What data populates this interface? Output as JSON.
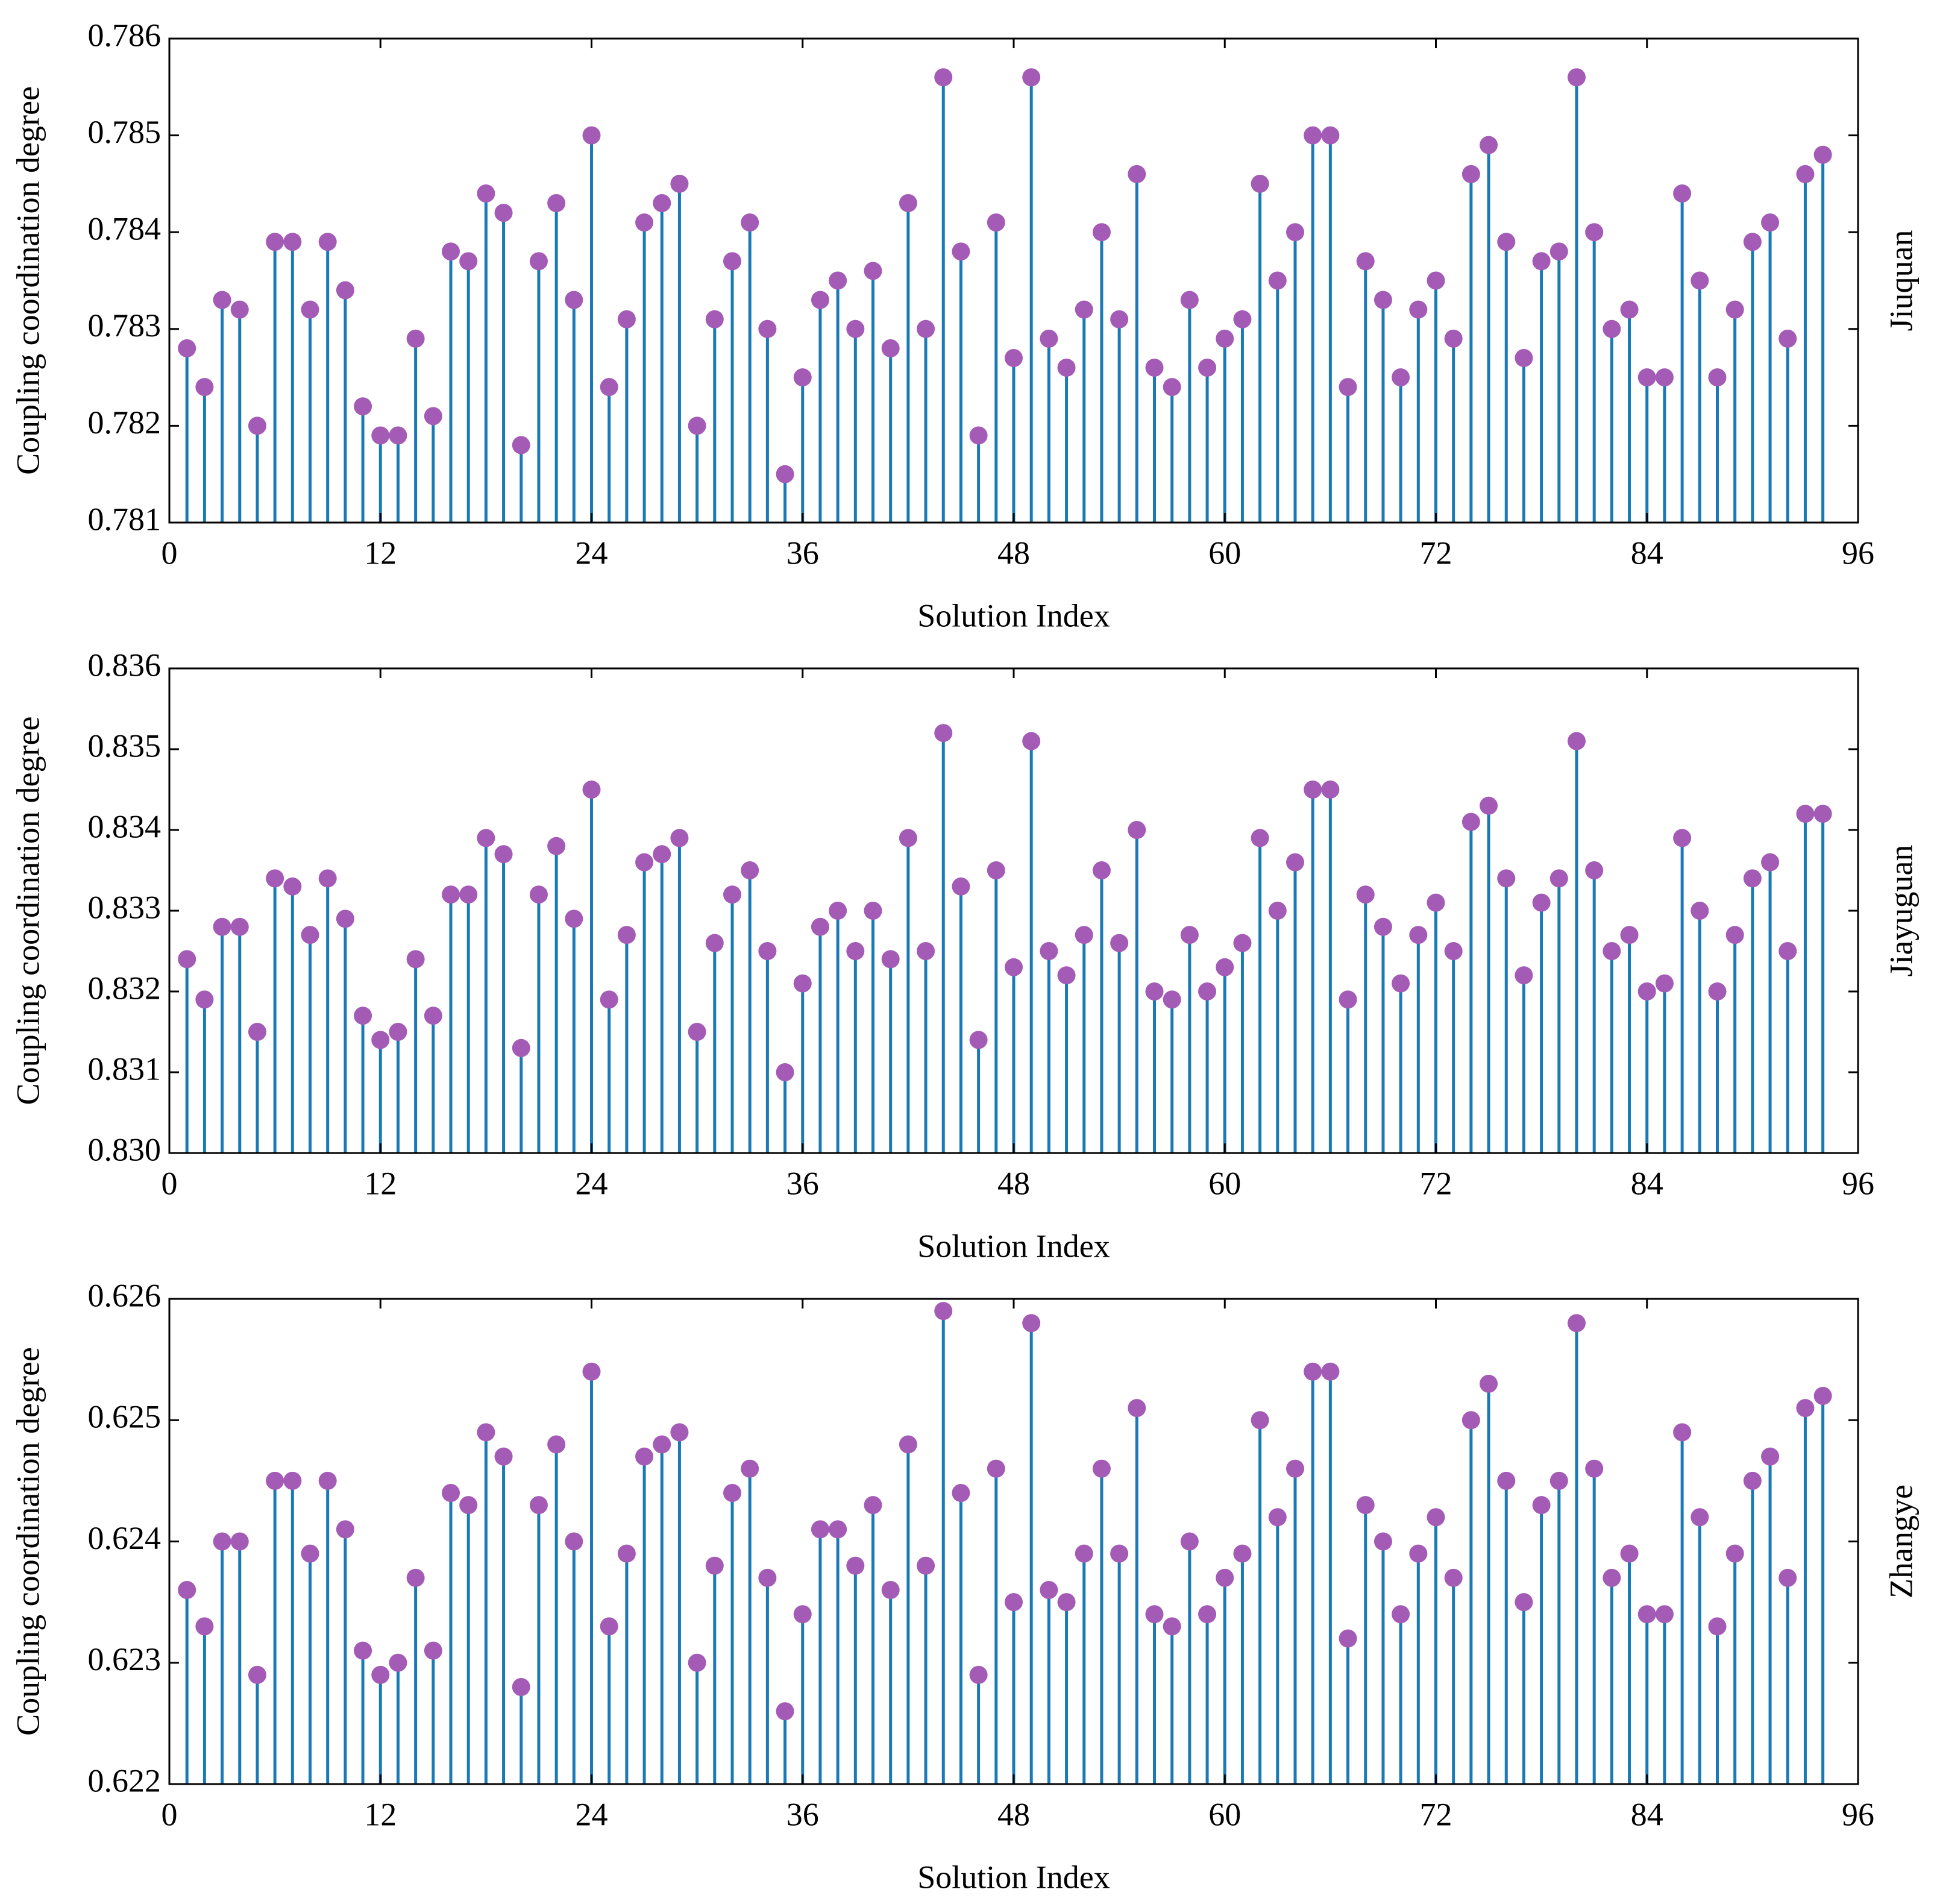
{
  "chart_data": [
    {
      "type": "stem",
      "panel_label": "Jiuquan",
      "xlabel": "Solution Index",
      "ylabel": "Coupling coordination degree",
      "stem_color": "#1a7ab8",
      "marker_color": "#a35bb6",
      "xlim": [
        0,
        96
      ],
      "xticks": [
        0,
        12,
        24,
        36,
        48,
        60,
        72,
        84,
        96
      ],
      "ylim": [
        0.781,
        0.786
      ],
      "yticks": [
        0.781,
        0.782,
        0.783,
        0.784,
        0.785,
        0.786
      ],
      "x": [
        1,
        2,
        3,
        4,
        5,
        6,
        7,
        8,
        9,
        10,
        11,
        12,
        13,
        14,
        15,
        16,
        17,
        18,
        19,
        20,
        21,
        22,
        23,
        24,
        25,
        26,
        27,
        28,
        29,
        30,
        31,
        32,
        33,
        34,
        35,
        36,
        37,
        38,
        39,
        40,
        41,
        42,
        43,
        44,
        45,
        46,
        47,
        48,
        49,
        50,
        51,
        52,
        53,
        54,
        55,
        56,
        57,
        58,
        59,
        60,
        61,
        62,
        63,
        64,
        65,
        66,
        67,
        68,
        69,
        70,
        71,
        72,
        73,
        74,
        75,
        76,
        77,
        78,
        79,
        80,
        81,
        82,
        83,
        84,
        85,
        86,
        87,
        88,
        89,
        90,
        91,
        92,
        93,
        94
      ],
      "values": [
        0.7828,
        0.7824,
        0.7833,
        0.7832,
        0.782,
        0.7839,
        0.7839,
        0.7832,
        0.7839,
        0.7834,
        0.7822,
        0.7819,
        0.7819,
        0.7829,
        0.7821,
        0.7838,
        0.7837,
        0.7844,
        0.7842,
        0.7818,
        0.7837,
        0.7843,
        0.7833,
        0.785,
        0.7824,
        0.7831,
        0.7841,
        0.7843,
        0.7845,
        0.782,
        0.7831,
        0.7837,
        0.7841,
        0.783,
        0.7815,
        0.7825,
        0.7833,
        0.7835,
        0.783,
        0.7836,
        0.7828,
        0.7843,
        0.783,
        0.7856,
        0.7838,
        0.7819,
        0.7841,
        0.7827,
        0.7856,
        0.7829,
        0.7826,
        0.7832,
        0.784,
        0.7831,
        0.7846,
        0.7826,
        0.7824,
        0.7833,
        0.7826,
        0.7829,
        0.7831,
        0.7845,
        0.7835,
        0.784,
        0.785,
        0.785,
        0.7824,
        0.7837,
        0.7833,
        0.7825,
        0.7832,
        0.7835,
        0.7829,
        0.7846,
        0.7849,
        0.7839,
        0.7827,
        0.7837,
        0.7838,
        0.7856,
        0.784,
        0.783,
        0.7832,
        0.7825,
        0.7825,
        0.7844,
        0.7835,
        0.7825,
        0.7832,
        0.7839,
        0.7841,
        0.7829,
        0.7846,
        0.7848
      ]
    },
    {
      "type": "stem",
      "panel_label": "Jiayuguan",
      "xlabel": "Solution Index",
      "ylabel": "Coupling coordination degree",
      "stem_color": "#1a7ab8",
      "marker_color": "#a35bb6",
      "xlim": [
        0,
        96
      ],
      "xticks": [
        0,
        12,
        24,
        36,
        48,
        60,
        72,
        84,
        96
      ],
      "ylim": [
        0.83,
        0.836
      ],
      "yticks": [
        {
          "value": 0.83,
          "label": "0.830"
        },
        0.831,
        0.832,
        0.833,
        0.834,
        0.835,
        0.836
      ],
      "x": [
        1,
        2,
        3,
        4,
        5,
        6,
        7,
        8,
        9,
        10,
        11,
        12,
        13,
        14,
        15,
        16,
        17,
        18,
        19,
        20,
        21,
        22,
        23,
        24,
        25,
        26,
        27,
        28,
        29,
        30,
        31,
        32,
        33,
        34,
        35,
        36,
        37,
        38,
        39,
        40,
        41,
        42,
        43,
        44,
        45,
        46,
        47,
        48,
        49,
        50,
        51,
        52,
        53,
        54,
        55,
        56,
        57,
        58,
        59,
        60,
        61,
        62,
        63,
        64,
        65,
        66,
        67,
        68,
        69,
        70,
        71,
        72,
        73,
        74,
        75,
        76,
        77,
        78,
        79,
        80,
        81,
        82,
        83,
        84,
        85,
        86,
        87,
        88,
        89,
        90,
        91,
        92,
        93,
        94
      ],
      "values": [
        0.8324,
        0.8319,
        0.8328,
        0.8328,
        0.8315,
        0.8334,
        0.8333,
        0.8327,
        0.8334,
        0.8329,
        0.8317,
        0.8314,
        0.8315,
        0.8324,
        0.8317,
        0.8332,
        0.8332,
        0.8339,
        0.8337,
        0.8313,
        0.8332,
        0.8338,
        0.8329,
        0.8345,
        0.8319,
        0.8327,
        0.8336,
        0.8337,
        0.8339,
        0.8315,
        0.8326,
        0.8332,
        0.8335,
        0.8325,
        0.831,
        0.8321,
        0.8328,
        0.833,
        0.8325,
        0.833,
        0.8324,
        0.8339,
        0.8325,
        0.8352,
        0.8333,
        0.8314,
        0.8335,
        0.8323,
        0.8351,
        0.8325,
        0.8322,
        0.8327,
        0.8335,
        0.8326,
        0.834,
        0.832,
        0.8319,
        0.8327,
        0.832,
        0.8323,
        0.8326,
        0.8339,
        0.833,
        0.8336,
        0.8345,
        0.8345,
        0.8319,
        0.8332,
        0.8328,
        0.8321,
        0.8327,
        0.8331,
        0.8325,
        0.8341,
        0.8343,
        0.8334,
        0.8322,
        0.8331,
        0.8334,
        0.8351,
        0.8335,
        0.8325,
        0.8327,
        0.832,
        0.8321,
        0.8339,
        0.833,
        0.832,
        0.8327,
        0.8334,
        0.8336,
        0.8325,
        0.8342,
        0.8342
      ]
    },
    {
      "type": "stem",
      "panel_label": "Zhangye",
      "xlabel": "Solution Index",
      "ylabel": "Coupling coordination degree",
      "stem_color": "#1a7ab8",
      "marker_color": "#a35bb6",
      "xlim": [
        0,
        96
      ],
      "xticks": [
        0,
        12,
        24,
        36,
        48,
        60,
        72,
        84,
        96
      ],
      "ylim": [
        0.622,
        0.626
      ],
      "yticks": [
        0.622,
        0.623,
        0.624,
        0.625,
        0.626
      ],
      "x": [
        1,
        2,
        3,
        4,
        5,
        6,
        7,
        8,
        9,
        10,
        11,
        12,
        13,
        14,
        15,
        16,
        17,
        18,
        19,
        20,
        21,
        22,
        23,
        24,
        25,
        26,
        27,
        28,
        29,
        30,
        31,
        32,
        33,
        34,
        35,
        36,
        37,
        38,
        39,
        40,
        41,
        42,
        43,
        44,
        45,
        46,
        47,
        48,
        49,
        50,
        51,
        52,
        53,
        54,
        55,
        56,
        57,
        58,
        59,
        60,
        61,
        62,
        63,
        64,
        65,
        66,
        67,
        68,
        69,
        70,
        71,
        72,
        73,
        74,
        75,
        76,
        77,
        78,
        79,
        80,
        81,
        82,
        83,
        84,
        85,
        86,
        87,
        88,
        89,
        90,
        91,
        92,
        93,
        94
      ],
      "values": [
        0.6236,
        0.6233,
        0.624,
        0.624,
        0.6229,
        0.6245,
        0.6245,
        0.6239,
        0.6245,
        0.6241,
        0.6231,
        0.6229,
        0.623,
        0.6237,
        0.6231,
        0.6244,
        0.6243,
        0.6249,
        0.6247,
        0.6228,
        0.6243,
        0.6248,
        0.624,
        0.6254,
        0.6233,
        0.6239,
        0.6247,
        0.6248,
        0.6249,
        0.623,
        0.6238,
        0.6244,
        0.6246,
        0.6237,
        0.6226,
        0.6234,
        0.6241,
        0.6241,
        0.6238,
        0.6243,
        0.6236,
        0.6248,
        0.6238,
        0.6259,
        0.6244,
        0.6229,
        0.6246,
        0.6235,
        0.6258,
        0.6236,
        0.6235,
        0.6239,
        0.6246,
        0.6239,
        0.6251,
        0.6234,
        0.6233,
        0.624,
        0.6234,
        0.6237,
        0.6239,
        0.625,
        0.6242,
        0.6246,
        0.6254,
        0.6254,
        0.6232,
        0.6243,
        0.624,
        0.6234,
        0.6239,
        0.6242,
        0.6237,
        0.625,
        0.6253,
        0.6245,
        0.6235,
        0.6243,
        0.6245,
        0.6258,
        0.6246,
        0.6237,
        0.6239,
        0.6234,
        0.6234,
        0.6249,
        0.6242,
        0.6233,
        0.6239,
        0.6245,
        0.6247,
        0.6237,
        0.6251,
        0.6252
      ]
    }
  ]
}
